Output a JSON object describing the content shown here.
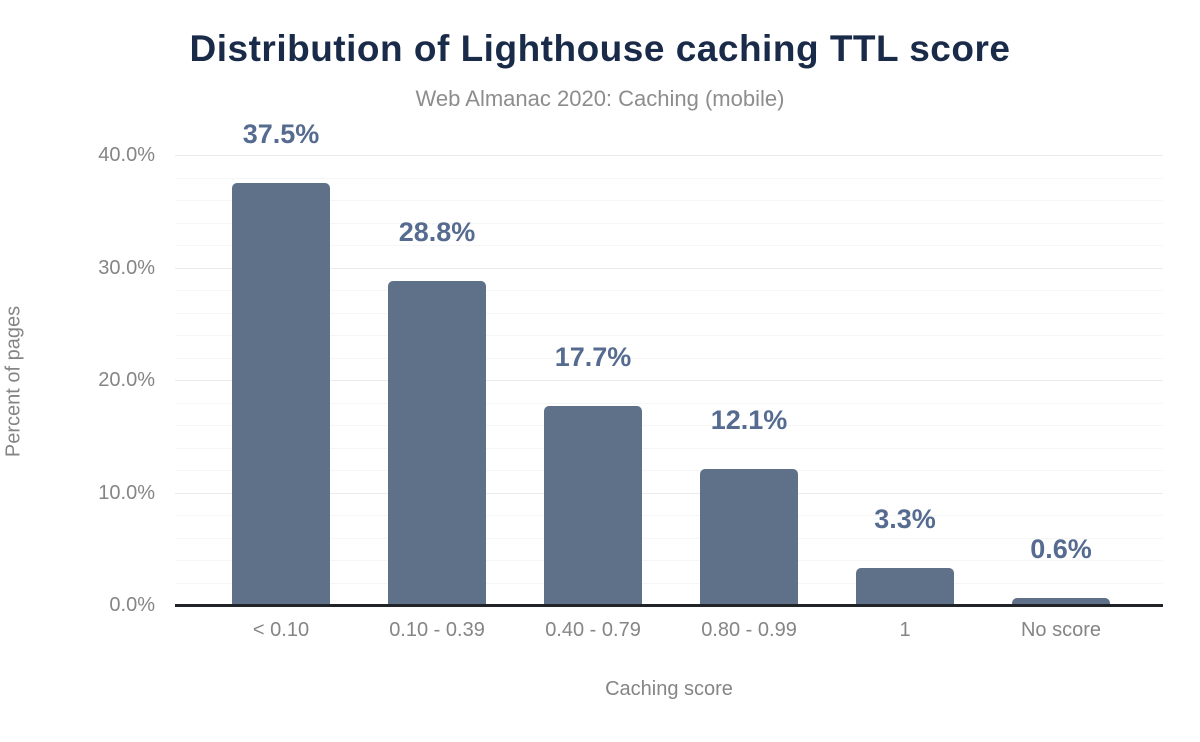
{
  "chart_data": {
    "type": "bar",
    "title": "Distribution of Lighthouse caching TTL score",
    "subtitle": "Web Almanac 2020: Caching (mobile)",
    "xlabel": "Caching score",
    "ylabel": "Percent of pages",
    "categories": [
      "< 0.10",
      "0.10 - 0.39",
      "0.40 - 0.79",
      "0.80 - 0.99",
      "1",
      "No score"
    ],
    "values": [
      37.5,
      28.8,
      17.7,
      12.1,
      3.3,
      0.6
    ],
    "value_labels": [
      "37.5%",
      "28.8%",
      "17.7%",
      "12.1%",
      "3.3%",
      "0.6%"
    ],
    "ylim": [
      0,
      40
    ],
    "yticks": [
      {
        "value": 0,
        "label": "0.0%"
      },
      {
        "value": 10,
        "label": "10.0%"
      },
      {
        "value": 20,
        "label": "20.0%"
      },
      {
        "value": 30,
        "label": "30.0%"
      },
      {
        "value": 40,
        "label": "40.0%"
      }
    ],
    "grid": {
      "minor_step": 2,
      "major_step": 10
    },
    "legend": null
  },
  "colors": {
    "title": "#1a2b49",
    "subtitle": "#8d8d8d",
    "bar": "#5f7089",
    "value_label": "#566b90",
    "axis_text": "#858585",
    "axis_line": "#202327",
    "grid_minor": "#f6f6f6",
    "grid_major": "#ebebeb",
    "background": "#ffffff"
  }
}
